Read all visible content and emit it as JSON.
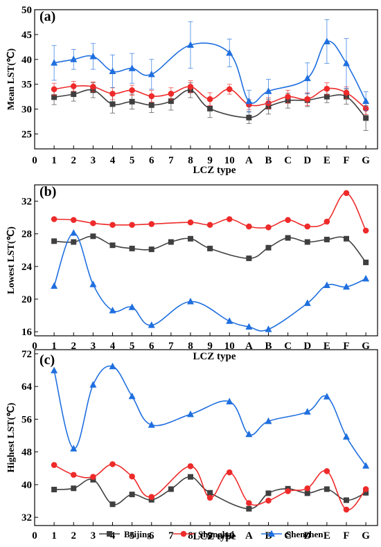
{
  "legend": [
    {
      "name": "Beijing",
      "color": "#3f3f3f",
      "marker": "square"
    },
    {
      "name": "Shanghai",
      "color": "#ee2a2a",
      "marker": "circle"
    },
    {
      "name": "Shenzhen",
      "color": "#1f6fdf",
      "marker": "triangle"
    }
  ],
  "chart_data": [
    {
      "type": "line",
      "panel_label": "(a)",
      "xlabel": "LCZ type",
      "ylabel": "Mean LST(℃)",
      "x_ticks": [
        "0",
        "1",
        "2",
        "3",
        "4",
        "5",
        "6",
        "7",
        "8",
        "9",
        "10",
        "A",
        "B",
        "C",
        "D",
        "E",
        "F",
        "G"
      ],
      "ylim": [
        22,
        50
      ],
      "y_ticks": [
        25,
        30,
        35,
        40,
        45,
        50
      ],
      "x_index": [
        1,
        2,
        3,
        4,
        5,
        6,
        7,
        8,
        9,
        10,
        11,
        12,
        13,
        14,
        15,
        16,
        17
      ],
      "series": [
        {
          "name": "Beijing",
          "color": "#3f3f3f",
          "values": [
            32.4,
            33.0,
            33.8,
            31.0,
            31.5,
            30.8,
            31.6,
            33.8,
            30.1,
            null,
            28.3,
            30.5,
            31.7,
            31.8,
            32.5,
            32.5,
            28.2
          ],
          "errors": [
            1.5,
            1.4,
            1.5,
            1.8,
            1.5,
            1.5,
            1.8,
            1.5,
            1.8,
            null,
            1.2,
            1.5,
            1.5,
            1.3,
            1.2,
            1.5,
            2.5
          ]
        },
        {
          "name": "Shanghai",
          "color": "#ee2a2a",
          "values": [
            34.0,
            34.6,
            34.5,
            33.1,
            33.8,
            32.6,
            33.1,
            34.5,
            32.0,
            34.0,
            30.9,
            31.2,
            32.5,
            32.0,
            34.1,
            33.3,
            30.1
          ],
          "errors": [
            1.2,
            1.0,
            1.0,
            1.2,
            1.0,
            1.2,
            1.2,
            1.2,
            1.3,
            1.0,
            1.0,
            1.1,
            1.3,
            1.3,
            1.2,
            1.2,
            1.2
          ]
        },
        {
          "name": "Shenzhen",
          "color": "#1f6fdf",
          "values": [
            39.3,
            40.0,
            40.6,
            37.6,
            38.2,
            37.0,
            null,
            42.9,
            null,
            41.3,
            31.6,
            33.6,
            null,
            36.2,
            43.6,
            39.2,
            31.6
          ],
          "errors": [
            3.5,
            2.0,
            2.6,
            3.3,
            3.0,
            3.0,
            null,
            4.7,
            null,
            2.8,
            2.2,
            2.4,
            null,
            3.1,
            4.4,
            5.0,
            1.9
          ]
        }
      ]
    },
    {
      "type": "line",
      "panel_label": "(b)",
      "xlabel": "LCZ type",
      "ylabel": "Lowest LST(℃)",
      "x_ticks": [
        "0",
        "1",
        "2",
        "3",
        "4",
        "5",
        "6",
        "7",
        "8",
        "9",
        "10",
        "A",
        "B",
        "C",
        "D",
        "E",
        "F",
        "G"
      ],
      "ylim": [
        15.5,
        34
      ],
      "y_ticks": [
        16,
        20,
        24,
        28,
        32
      ],
      "x_index": [
        1,
        2,
        3,
        4,
        5,
        6,
        7,
        8,
        9,
        10,
        11,
        12,
        13,
        14,
        15,
        16,
        17
      ],
      "series": [
        {
          "name": "Beijing",
          "color": "#3f3f3f",
          "values": [
            27.1,
            27.0,
            27.7,
            26.6,
            26.2,
            26.1,
            27.0,
            27.4,
            26.2,
            null,
            25.0,
            26.3,
            27.5,
            27.0,
            27.3,
            27.4,
            24.5
          ]
        },
        {
          "name": "Shanghai",
          "color": "#ee2a2a",
          "values": [
            29.8,
            29.7,
            29.3,
            29.1,
            29.1,
            29.2,
            null,
            29.4,
            29.1,
            29.8,
            28.9,
            28.8,
            29.7,
            28.9,
            29.5,
            33.0,
            28.4
          ]
        },
        {
          "name": "Shenzhen",
          "color": "#1f6fdf",
          "values": [
            21.6,
            28.1,
            21.8,
            18.6,
            19.0,
            16.8,
            null,
            19.7,
            null,
            17.3,
            16.6,
            16.3,
            null,
            19.5,
            21.7,
            21.5,
            22.5
          ]
        }
      ]
    },
    {
      "type": "line",
      "panel_label": "(c)",
      "xlabel": "LCZ type",
      "ylabel": "Highest LST(℃)",
      "x_ticks": [
        "0",
        "1",
        "2",
        "3",
        "4",
        "5",
        "6",
        "7",
        "8",
        "9",
        "10",
        "A",
        "B",
        "C",
        "D",
        "E",
        "F",
        "G"
      ],
      "ylim": [
        30,
        73
      ],
      "y_ticks": [
        32,
        40,
        48,
        56,
        64,
        72
      ],
      "x_index": [
        1,
        2,
        3,
        4,
        5,
        6,
        7,
        8,
        9,
        10,
        11,
        12,
        13,
        14,
        15,
        16,
        17
      ],
      "series": [
        {
          "name": "Beijing",
          "color": "#3f3f3f",
          "values": [
            38.8,
            39.1,
            41.2,
            35.2,
            37.6,
            36.3,
            38.9,
            41.9,
            38.0,
            null,
            34.1,
            37.9,
            39.0,
            37.9,
            38.9,
            36.2,
            38.0
          ]
        },
        {
          "name": "Shanghai",
          "color": "#ee2a2a",
          "values": [
            44.8,
            42.4,
            41.9,
            45.0,
            42.0,
            37.0,
            null,
            44.5,
            36.8,
            43.0,
            35.5,
            36.1,
            38.4,
            39.1,
            43.3,
            33.9,
            38.9
          ]
        },
        {
          "name": "Shenzhen",
          "color": "#1f6fdf",
          "values": [
            67.9,
            48.8,
            64.4,
            68.9,
            61.6,
            54.6,
            null,
            57.2,
            null,
            60.3,
            52.3,
            55.5,
            null,
            57.8,
            61.5,
            51.7,
            44.6
          ]
        }
      ]
    }
  ]
}
